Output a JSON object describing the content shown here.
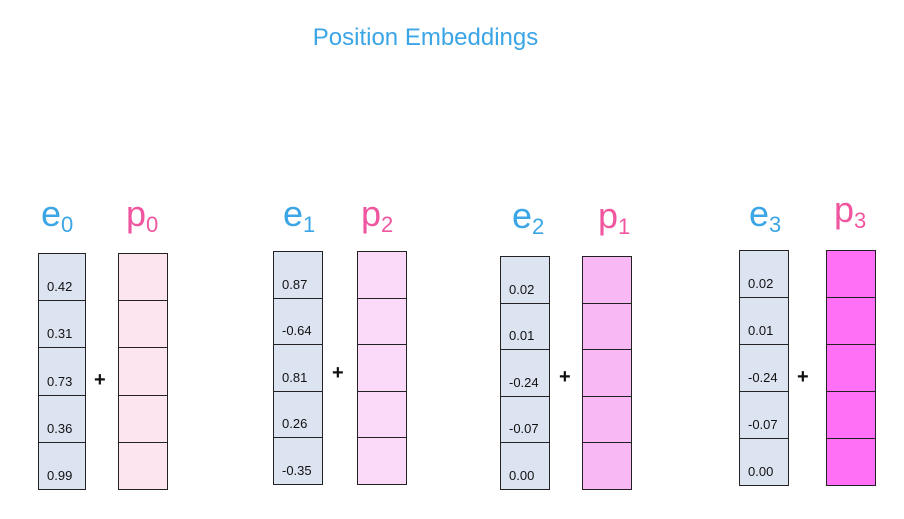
{
  "title": "Position Embeddings",
  "plus_sign": "+",
  "groups": [
    {
      "e_label": {
        "base": "e",
        "sub": "0"
      },
      "p_label": {
        "base": "p",
        "sub": "0"
      },
      "e_values": [
        "0.42",
        "0.31",
        "0.73",
        "0.36",
        "0.99"
      ],
      "p_color": "#fde5f0"
    },
    {
      "e_label": {
        "base": "e",
        "sub": "1"
      },
      "p_label": {
        "base": "p",
        "sub": "2"
      },
      "e_values": [
        "0.87",
        "-0.64",
        "0.81",
        "0.26",
        "-0.35"
      ],
      "p_color": "#fbd9f8"
    },
    {
      "e_label": {
        "base": "e",
        "sub": "2"
      },
      "p_label": {
        "base": "p",
        "sub": "1"
      },
      "e_values": [
        "0.02",
        "0.01",
        "-0.24",
        "-0.07",
        "0.00"
      ],
      "p_color": "#f8b8f3"
    },
    {
      "e_label": {
        "base": "e",
        "sub": "3"
      },
      "p_label": {
        "base": "p",
        "sub": "3"
      },
      "e_values": [
        "0.02",
        "0.01",
        "-0.24",
        "-0.07",
        "0.00"
      ],
      "p_color": "#ff70f6"
    }
  ]
}
